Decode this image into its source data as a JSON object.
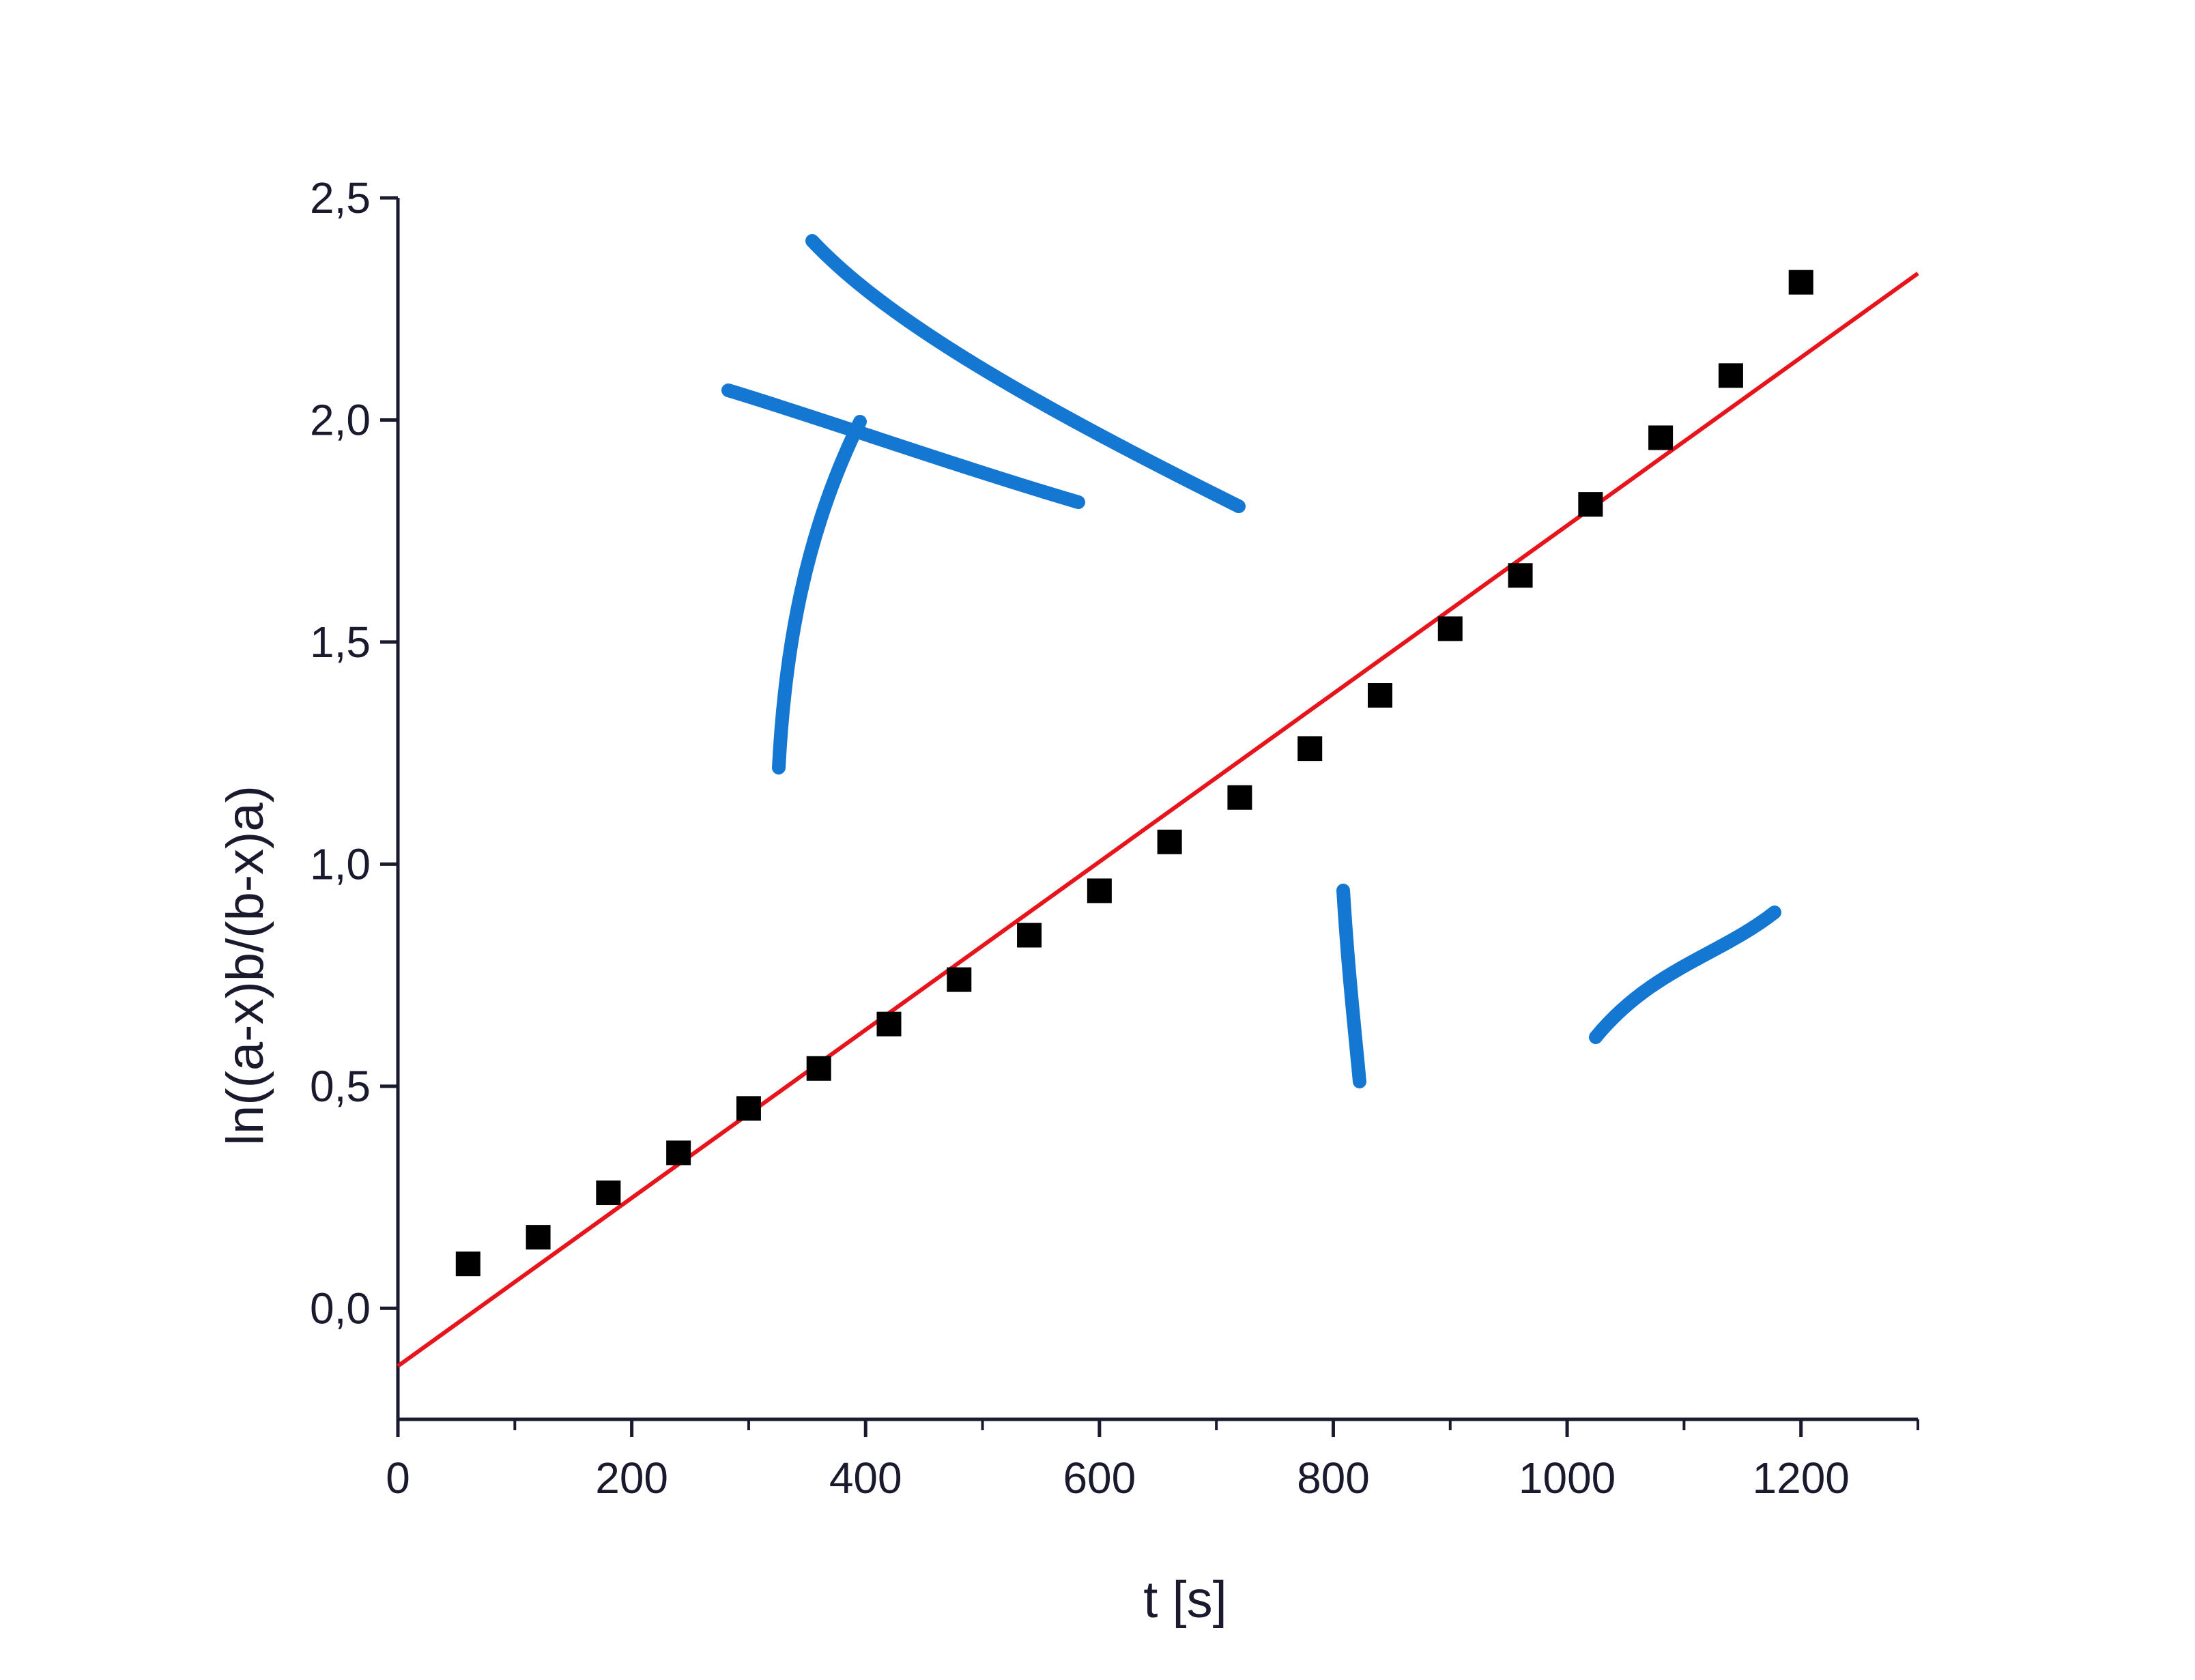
{
  "chart_data": {
    "type": "scatter",
    "title": "",
    "xlabel": "t [s]",
    "ylabel": "ln((a-x)b/(b-x)a)",
    "xlim": [
      0,
      1300
    ],
    "ylim": [
      -0.25,
      2.5
    ],
    "x_ticks": [
      0,
      200,
      400,
      600,
      800,
      1000,
      1200
    ],
    "x_tick_labels": [
      "0",
      "200",
      "400",
      "600",
      "800",
      "1000",
      "1200"
    ],
    "x_minor_ticks": [
      100,
      300,
      500,
      700,
      900,
      1100,
      1300
    ],
    "y_ticks": [
      0.0,
      0.5,
      1.0,
      1.5,
      2.0,
      2.5
    ],
    "y_tick_labels": [
      "0,0",
      "0,5",
      "1,0",
      "1,5",
      "2,0",
      "2,5"
    ],
    "grid": false,
    "series": [
      {
        "kind": "points",
        "marker": "square",
        "color": "#000000",
        "x": [
          60,
          120,
          180,
          240,
          300,
          360,
          420,
          480,
          540,
          600,
          660,
          720,
          780,
          840,
          900,
          960,
          1020,
          1080,
          1140,
          1200
        ],
        "y": [
          0.1,
          0.16,
          0.26,
          0.35,
          0.45,
          0.54,
          0.64,
          0.74,
          0.84,
          0.94,
          1.05,
          1.15,
          1.26,
          1.38,
          1.53,
          1.65,
          1.81,
          1.96,
          2.1,
          2.31
        ]
      },
      {
        "kind": "fit-line",
        "color": "#e8141b",
        "x": [
          0,
          1300
        ],
        "y": [
          -0.13,
          2.33
        ]
      }
    ],
    "annotations": {
      "ink_color": "#1477d2",
      "strokes": "handwritten blue ink marks over the plot area"
    }
  }
}
